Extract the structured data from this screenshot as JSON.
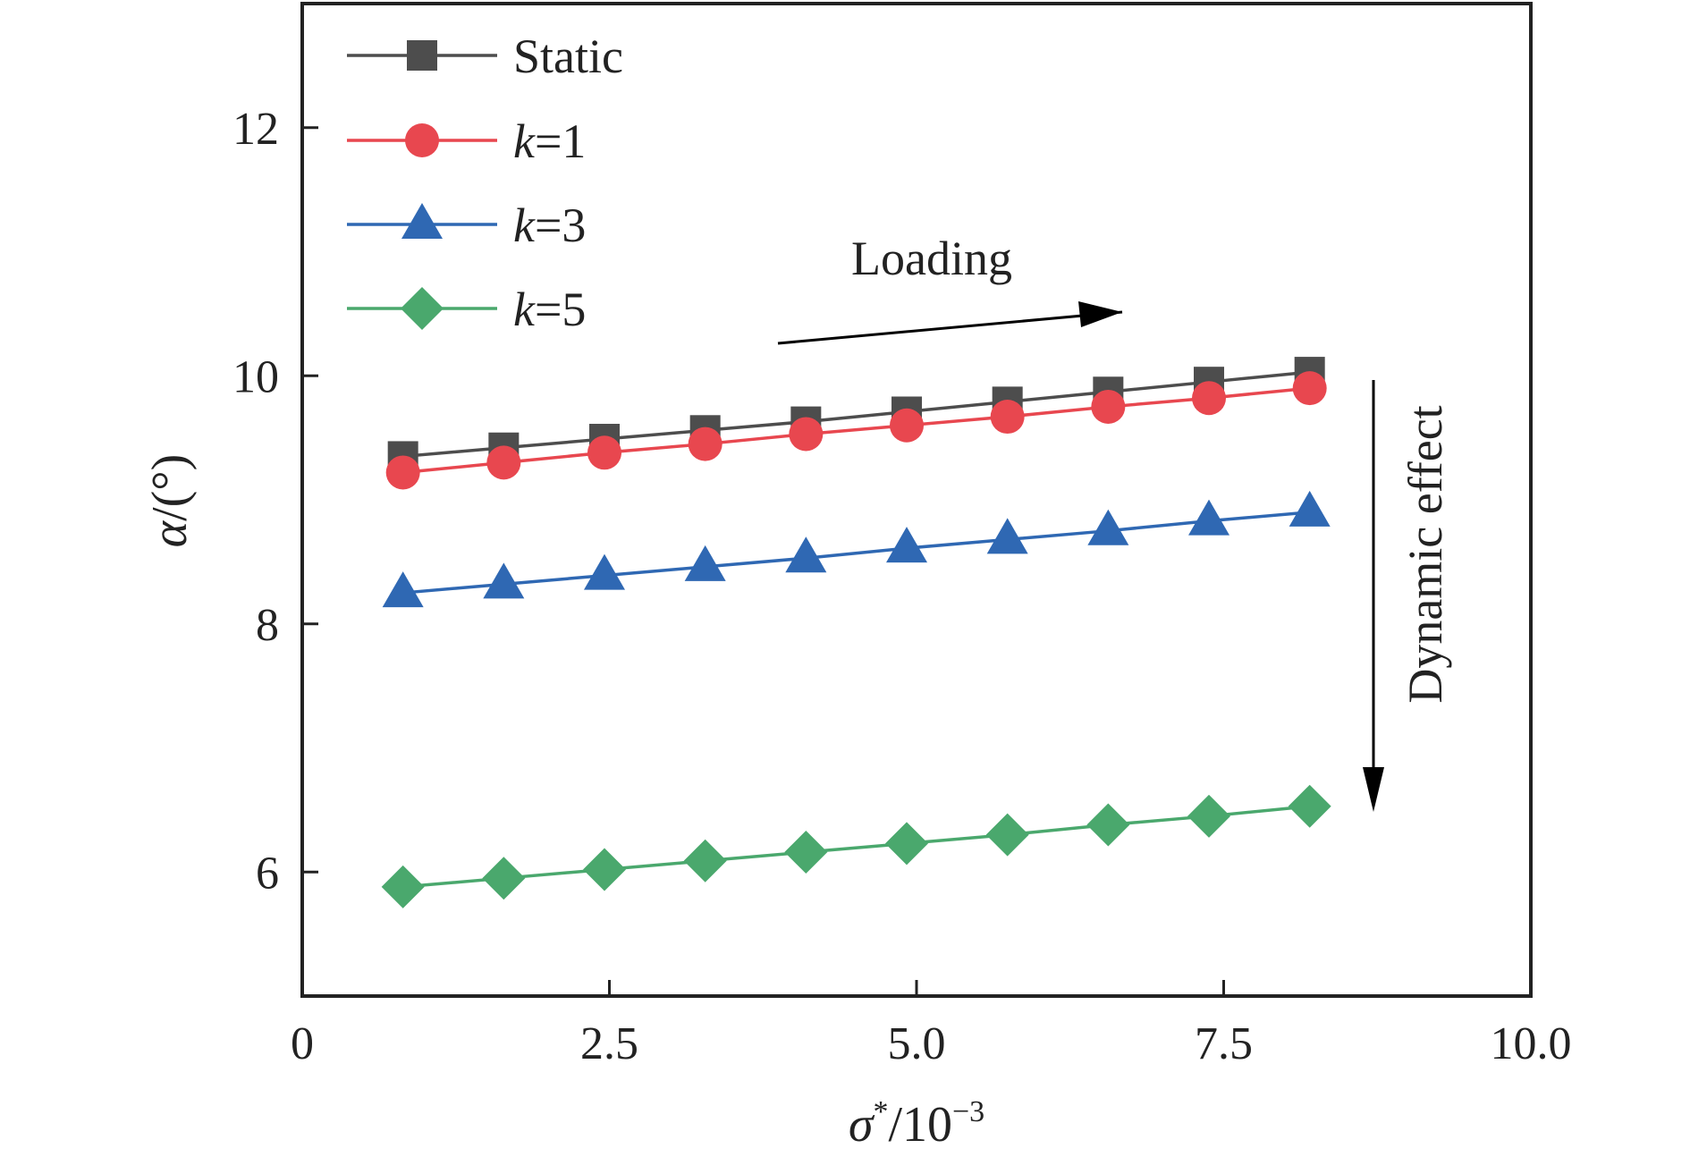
{
  "chart_data": {
    "type": "line",
    "x": [
      0.82,
      1.64,
      2.46,
      3.28,
      4.1,
      4.92,
      5.74,
      6.56,
      7.38,
      8.2
    ],
    "series": [
      {
        "name": "Static",
        "name_parts": [
          "",
          "Static"
        ],
        "marker": "square",
        "color": "#4d4d4d",
        "values": [
          9.35,
          9.42,
          9.49,
          9.56,
          9.63,
          9.71,
          9.79,
          9.87,
          9.95,
          10.03
        ]
      },
      {
        "name": "k=1",
        "name_parts": [
          "k",
          "=1"
        ],
        "marker": "circle",
        "color": "#e8474f",
        "values": [
          9.22,
          9.3,
          9.38,
          9.45,
          9.53,
          9.6,
          9.67,
          9.75,
          9.82,
          9.9
        ]
      },
      {
        "name": "k=3",
        "name_parts": [
          "k",
          "=3"
        ],
        "marker": "triangle",
        "color": "#2f68b3",
        "values": [
          8.25,
          8.32,
          8.39,
          8.46,
          8.53,
          8.61,
          8.68,
          8.75,
          8.83,
          8.9
        ]
      },
      {
        "name": "k=5",
        "name_parts": [
          "k",
          "=5"
        ],
        "marker": "diamond",
        "color": "#4aa86d",
        "values": [
          5.88,
          5.95,
          6.02,
          6.09,
          6.16,
          6.23,
          6.3,
          6.38,
          6.45,
          6.53
        ]
      }
    ],
    "xlim": [
      0,
      10
    ],
    "ylim": [
      5,
      13
    ],
    "xticks": [
      0,
      2.5,
      5.0,
      7.5,
      10.0
    ],
    "xtick_labels": [
      "0",
      "2.5",
      "5.0",
      "7.5",
      "10.0"
    ],
    "yticks": [
      6,
      8,
      10,
      12
    ],
    "ytick_labels": [
      "6",
      "8",
      "10",
      "12"
    ],
    "xlabel": {
      "symbol": "σ",
      "sup": "*",
      "rest": "/10",
      "exp": "−3"
    },
    "ylabel": {
      "symbol": "α",
      "rest": "/(°)"
    },
    "legend_position": "top-left",
    "grid": false,
    "annotations": {
      "loading": "Loading",
      "dynamic": "Dynamic effect"
    }
  }
}
